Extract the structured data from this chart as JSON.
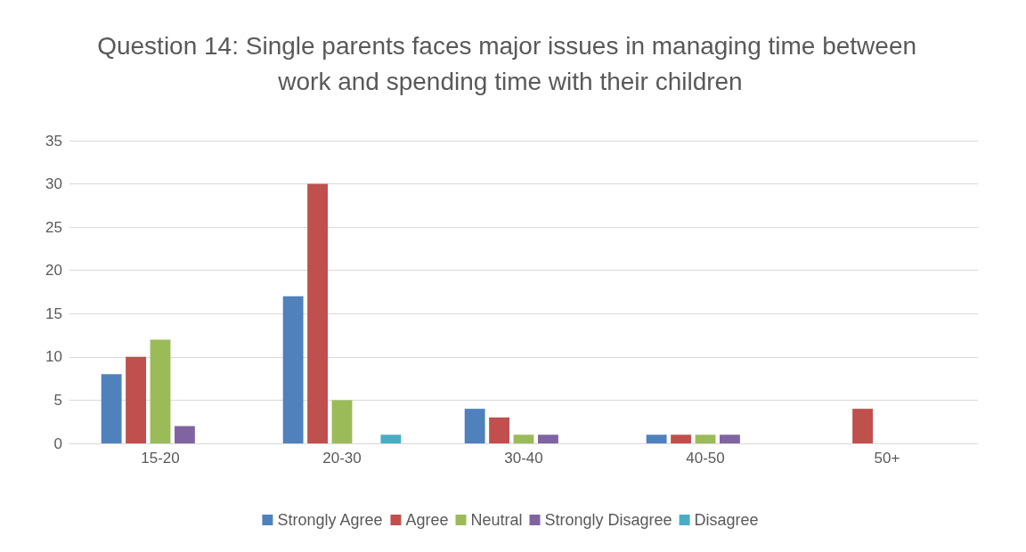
{
  "chart_data": {
    "type": "bar",
    "title": "Question 14: Single parents faces major issues in managing time between work and spending time with their children",
    "categories": [
      "15-20",
      "20-30",
      "30-40",
      "40-50",
      "50+"
    ],
    "series": [
      {
        "name": "Strongly Agree",
        "color": "#4f81bd",
        "values": [
          8,
          17,
          4,
          1,
          0
        ]
      },
      {
        "name": "Agree",
        "color": "#c0504d",
        "values": [
          10,
          30,
          3,
          1,
          4
        ]
      },
      {
        "name": "Neutral",
        "color": "#9bbb59",
        "values": [
          12,
          5,
          1,
          1,
          0
        ]
      },
      {
        "name": "Strongly Disagree",
        "color": "#8064a2",
        "values": [
          2,
          0,
          1,
          1,
          0
        ]
      },
      {
        "name": "Disagree",
        "color": "#4bacc6",
        "values": [
          0,
          1,
          0,
          0,
          0
        ]
      }
    ],
    "ylim": [
      0,
      35
    ],
    "yticks": [
      0,
      5,
      10,
      15,
      20,
      25,
      30,
      35
    ],
    "grid": "y",
    "legend": "bottom"
  }
}
